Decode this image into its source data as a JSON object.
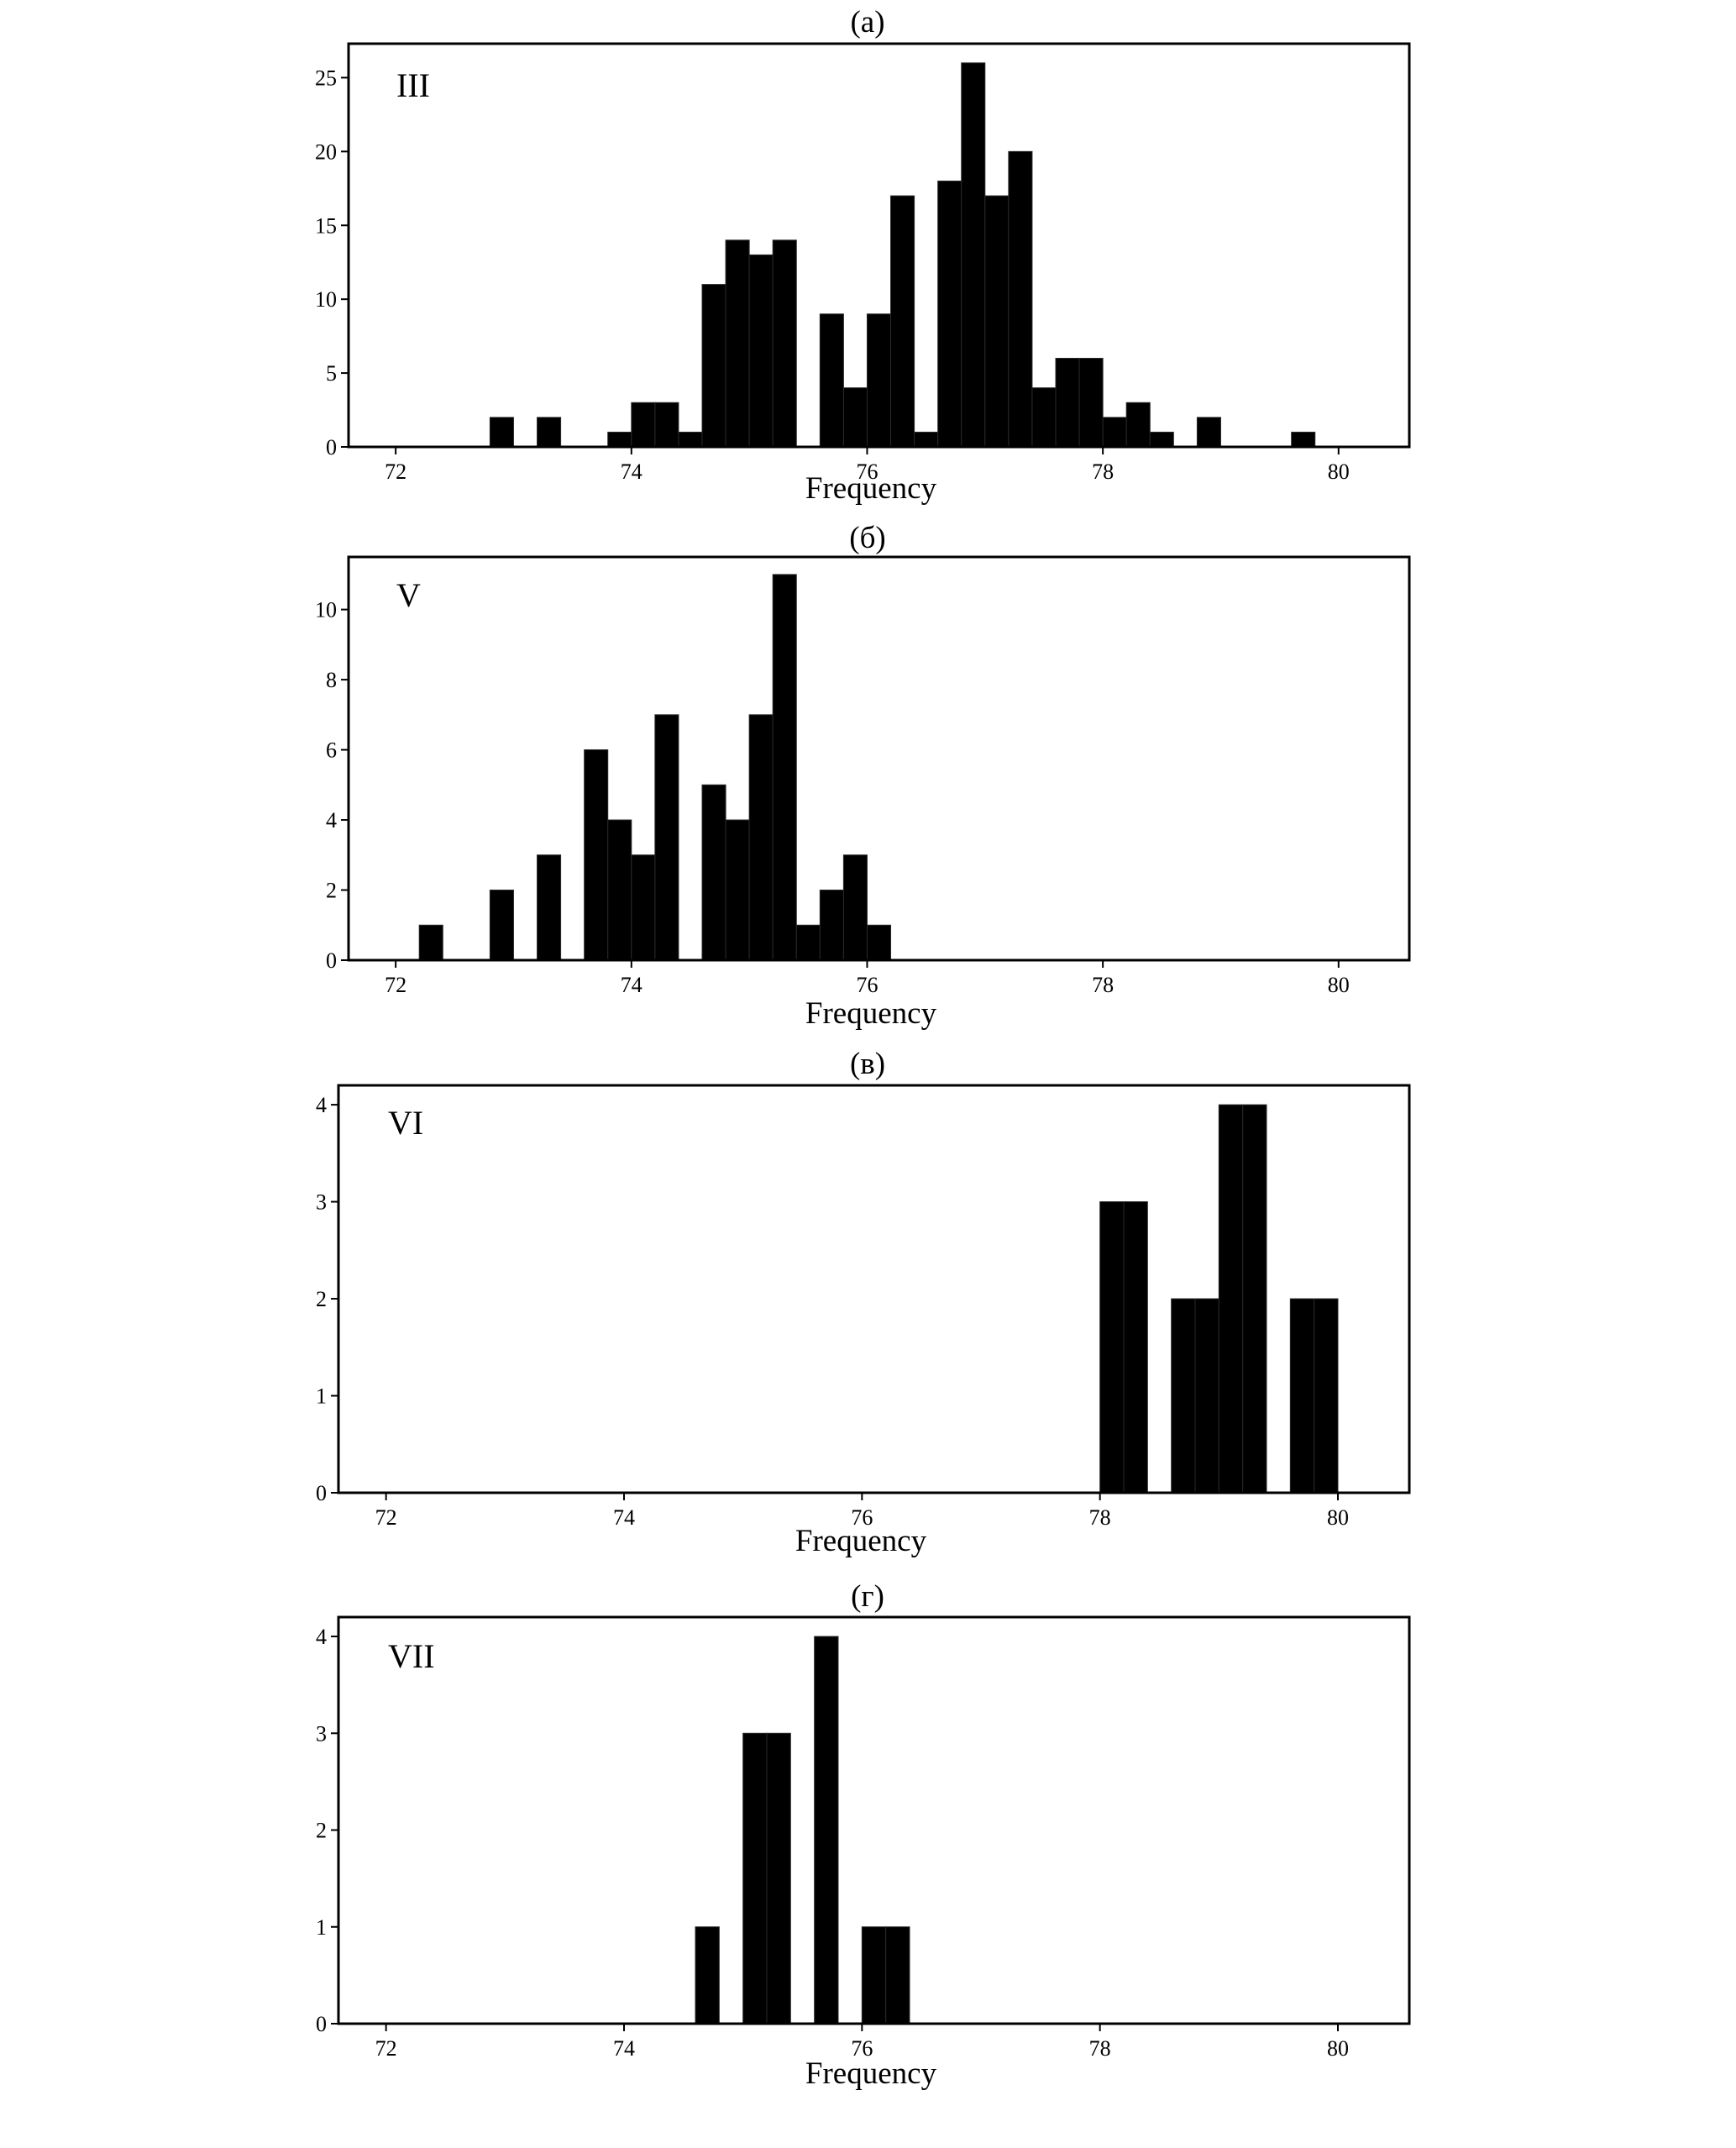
{
  "chart_data": [
    {
      "type": "bar",
      "title": "(а)",
      "label": "III",
      "xlabel": "Frequency",
      "ylabel": "",
      "xlim": [
        71.6,
        80.6
      ],
      "ylim": [
        0,
        27.3
      ],
      "xticks": [
        72,
        74,
        76,
        78,
        80
      ],
      "yticks": [
        0,
        5,
        10,
        15,
        20,
        25
      ],
      "bin_width": 0.2,
      "bins": [
        {
          "x": 72.8,
          "count": 2
        },
        {
          "x": 73.2,
          "count": 2
        },
        {
          "x": 73.8,
          "count": 1
        },
        {
          "x": 74.0,
          "count": 3
        },
        {
          "x": 74.2,
          "count": 3
        },
        {
          "x": 74.4,
          "count": 1
        },
        {
          "x": 74.6,
          "count": 11
        },
        {
          "x": 74.8,
          "count": 14
        },
        {
          "x": 75.0,
          "count": 13
        },
        {
          "x": 75.2,
          "count": 14
        },
        {
          "x": 75.6,
          "count": 9
        },
        {
          "x": 75.8,
          "count": 4
        },
        {
          "x": 76.0,
          "count": 9
        },
        {
          "x": 76.2,
          "count": 17
        },
        {
          "x": 76.4,
          "count": 1
        },
        {
          "x": 76.6,
          "count": 18
        },
        {
          "x": 76.8,
          "count": 26
        },
        {
          "x": 77.0,
          "count": 17
        },
        {
          "x": 77.2,
          "count": 20
        },
        {
          "x": 77.4,
          "count": 4
        },
        {
          "x": 77.6,
          "count": 6
        },
        {
          "x": 77.8,
          "count": 6
        },
        {
          "x": 78.0,
          "count": 2
        },
        {
          "x": 78.2,
          "count": 3
        },
        {
          "x": 78.4,
          "count": 1
        },
        {
          "x": 78.8,
          "count": 2
        },
        {
          "x": 79.6,
          "count": 1
        }
      ]
    },
    {
      "type": "bar",
      "title": "(б)",
      "label": "V",
      "xlabel": "Frequency",
      "ylabel": "",
      "xlim": [
        71.6,
        80.6
      ],
      "ylim": [
        0,
        11.5
      ],
      "xticks": [
        72,
        74,
        76,
        78,
        80
      ],
      "yticks": [
        0,
        2,
        4,
        6,
        8,
        10
      ],
      "bin_width": 0.2,
      "bins": [
        {
          "x": 72.2,
          "count": 1
        },
        {
          "x": 72.8,
          "count": 2
        },
        {
          "x": 73.2,
          "count": 3
        },
        {
          "x": 73.6,
          "count": 6
        },
        {
          "x": 73.8,
          "count": 4
        },
        {
          "x": 74.0,
          "count": 3
        },
        {
          "x": 74.2,
          "count": 7
        },
        {
          "x": 74.6,
          "count": 5
        },
        {
          "x": 74.8,
          "count": 4
        },
        {
          "x": 75.0,
          "count": 7
        },
        {
          "x": 75.2,
          "count": 11
        },
        {
          "x": 75.4,
          "count": 1
        },
        {
          "x": 75.6,
          "count": 2
        },
        {
          "x": 75.8,
          "count": 3
        },
        {
          "x": 76.0,
          "count": 1
        }
      ]
    },
    {
      "type": "bar",
      "title": "(в)",
      "label": "VI",
      "xlabel": "Frequency",
      "ylabel": "",
      "xlim": [
        71.6,
        80.6
      ],
      "ylim": [
        0,
        4.2
      ],
      "xticks": [
        72,
        74,
        76,
        78,
        80
      ],
      "yticks": [
        0,
        1,
        2,
        3,
        4
      ],
      "bin_width": 0.2,
      "bins": [
        {
          "x": 78.0,
          "count": 3
        },
        {
          "x": 78.2,
          "count": 3
        },
        {
          "x": 78.6,
          "count": 2
        },
        {
          "x": 78.8,
          "count": 2
        },
        {
          "x": 79.0,
          "count": 4
        },
        {
          "x": 79.2,
          "count": 4
        },
        {
          "x": 79.6,
          "count": 2
        },
        {
          "x": 79.8,
          "count": 2
        }
      ]
    },
    {
      "type": "bar",
      "title": "(г)",
      "label": "VII",
      "xlabel": "Frequency",
      "ylabel": "",
      "xlim": [
        71.6,
        80.6
      ],
      "ylim": [
        0,
        4.2
      ],
      "xticks": [
        72,
        74,
        76,
        78,
        80
      ],
      "yticks": [
        0,
        1,
        2,
        3,
        4
      ],
      "bin_width": 0.2,
      "bins": [
        {
          "x": 74.6,
          "count": 1
        },
        {
          "x": 75.0,
          "count": 3
        },
        {
          "x": 75.2,
          "count": 3
        },
        {
          "x": 75.6,
          "count": 4
        },
        {
          "x": 76.0,
          "count": 1
        },
        {
          "x": 76.2,
          "count": 1
        }
      ]
    }
  ]
}
